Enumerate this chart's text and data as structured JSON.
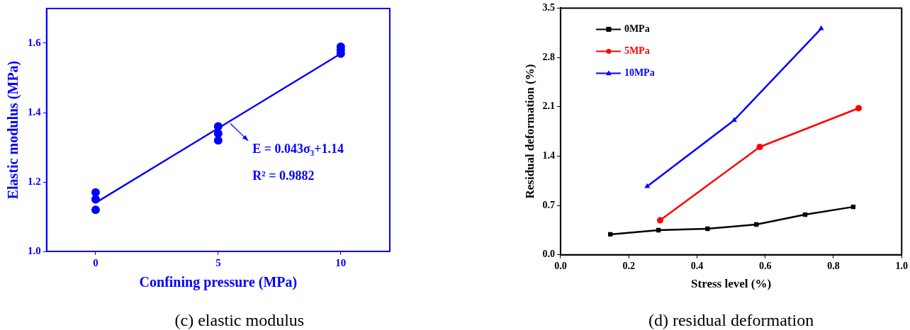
{
  "chart_data": [
    {
      "type": "scatter",
      "xlabel": "Confining pressure (MPa)",
      "ylabel": "Elastic modulus (MPa)",
      "xlim": [
        -2,
        12
      ],
      "xticks": [
        0,
        5,
        10
      ],
      "ylim": [
        1.0,
        1.7
      ],
      "yticks": [
        {
          "value": 1.0,
          "label": "1.0"
        },
        1.2,
        1.4,
        1.6
      ],
      "grid": false,
      "marker": "circle",
      "legend": false,
      "series": [
        {
          "type": "scatter",
          "color": "#0000ff",
          "x": [
            0,
            0,
            0,
            5,
            5,
            5,
            10,
            10,
            10
          ],
          "values": [
            1.17,
            1.15,
            1.12,
            1.36,
            1.34,
            1.32,
            1.59,
            1.58,
            1.57
          ]
        },
        {
          "type": "line",
          "color": "#0000ff",
          "marker": "none",
          "x": [
            0,
            10
          ],
          "values": [
            1.14,
            1.57
          ]
        }
      ],
      "annotations": [
        "E = 0.043σ₃+1.14",
        "R² = 0.9882",
        "(c) elastic modulus"
      ]
    },
    {
      "type": "line",
      "xlabel": "Stress level (%)",
      "ylabel": "Residual deformation (%)",
      "xlim": [
        0,
        1
      ],
      "xticks": [
        {
          "value": 0,
          "label": "0.0"
        },
        0.2,
        0.4,
        0.6,
        0.8,
        {
          "value": 1,
          "label": "1.0"
        }
      ],
      "ylim": [
        0,
        3.5
      ],
      "yticks": [
        {
          "value": 0,
          "label": "0.0"
        },
        0.7,
        1.4,
        2.1,
        2.8,
        3.5
      ],
      "grid": false,
      "legend": "top left",
      "series": [
        {
          "name": "0MPa",
          "color": "#000000",
          "marker": "square",
          "x": [
            0.146,
            0.287,
            0.431,
            0.574,
            0.717,
            0.858
          ],
          "values": [
            0.29,
            0.35,
            0.37,
            0.43,
            0.57,
            0.68
          ]
        },
        {
          "name": "5MPa",
          "color": "#ff0000",
          "marker": "circle",
          "x": [
            0.292,
            0.584,
            0.874
          ],
          "values": [
            0.49,
            1.53,
            2.08
          ]
        },
        {
          "name": "10MPa",
          "color": "#0000ff",
          "marker": "triangle",
          "x": [
            0.254,
            0.509,
            0.764
          ],
          "values": [
            0.97,
            1.91,
            3.21
          ]
        }
      ],
      "annotations": [
        "(d) residual deformation"
      ]
    }
  ]
}
